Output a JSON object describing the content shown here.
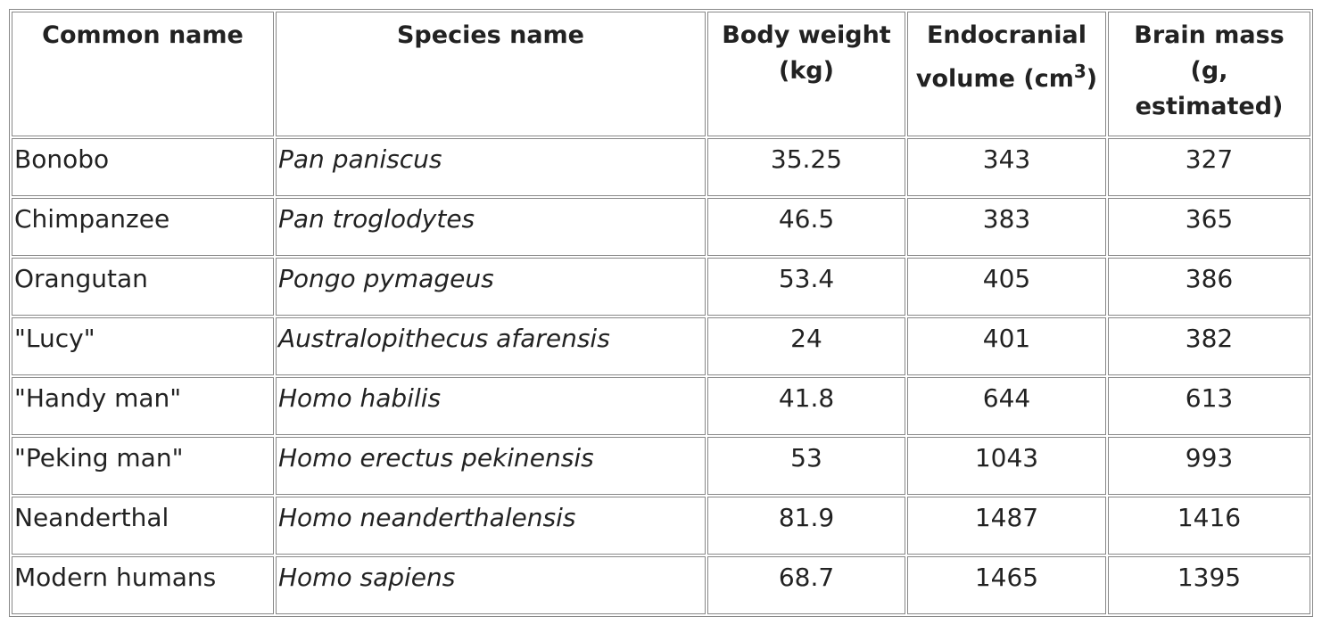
{
  "table": {
    "header": [
      {
        "text": "Common name"
      },
      {
        "text": "Species name"
      },
      {
        "text": "Body weight (kg)"
      },
      {
        "text": "Endocranial volume (cm",
        "sup": "3",
        "after": ")"
      },
      {
        "text": "Brain mass (g, estimated)"
      }
    ],
    "rows": [
      [
        "Bonobo",
        "Pan paniscus",
        35.25,
        343,
        327
      ],
      [
        "Chimpanzee",
        "Pan troglodytes",
        46.5,
        383,
        365
      ],
      [
        "Orangutan",
        "Pongo pymageus",
        53.4,
        405,
        386
      ],
      [
        "\"Lucy\"",
        "Australopithecus afarensis",
        24,
        401,
        382
      ],
      [
        "\"Handy man\"",
        "Homo habilis",
        41.8,
        644,
        613
      ],
      [
        "\"Peking man\"",
        "Homo erectus pekinensis",
        53,
        1043,
        993
      ],
      [
        "Neanderthal",
        "Homo neanderthalensis",
        81.9,
        1487,
        1416
      ],
      [
        "Modern humans",
        "Homo sapiens",
        68.7,
        1465,
        1395
      ]
    ]
  }
}
